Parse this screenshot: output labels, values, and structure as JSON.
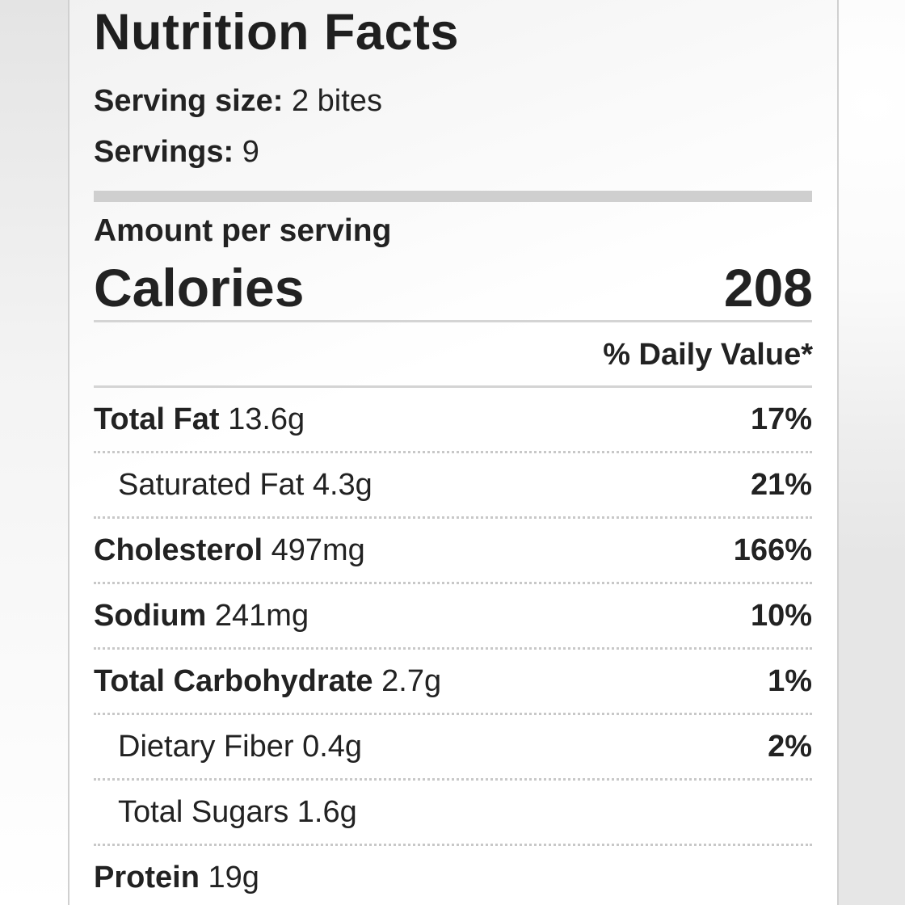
{
  "label": {
    "title": "Nutrition Facts",
    "serving_size_label": "Serving size:",
    "serving_size_value": "2 bites",
    "servings_label": "Servings:",
    "servings_value": "9",
    "amount_per_serving": "Amount per serving",
    "calories_label": "Calories",
    "calories_value": "208",
    "daily_value_header": "% Daily Value*",
    "nutrients": [
      {
        "name": "Total Fat",
        "amount": "13.6g",
        "daily_value": "17%"
      },
      {
        "name": "Saturated Fat",
        "amount": "4.3g",
        "daily_value": "21%"
      },
      {
        "name": "Cholesterol",
        "amount": "497mg",
        "daily_value": "166%"
      },
      {
        "name": "Sodium",
        "amount": "241mg",
        "daily_value": "10%"
      },
      {
        "name": "Total Carbohydrate",
        "amount": "2.7g",
        "daily_value": "1%"
      },
      {
        "name": "Dietary Fiber",
        "amount": "0.4g",
        "daily_value": "2%"
      },
      {
        "name": "Total Sugars",
        "amount": "1.6g",
        "daily_value": ""
      },
      {
        "name": "Protein",
        "amount": "19g",
        "daily_value": ""
      }
    ]
  }
}
